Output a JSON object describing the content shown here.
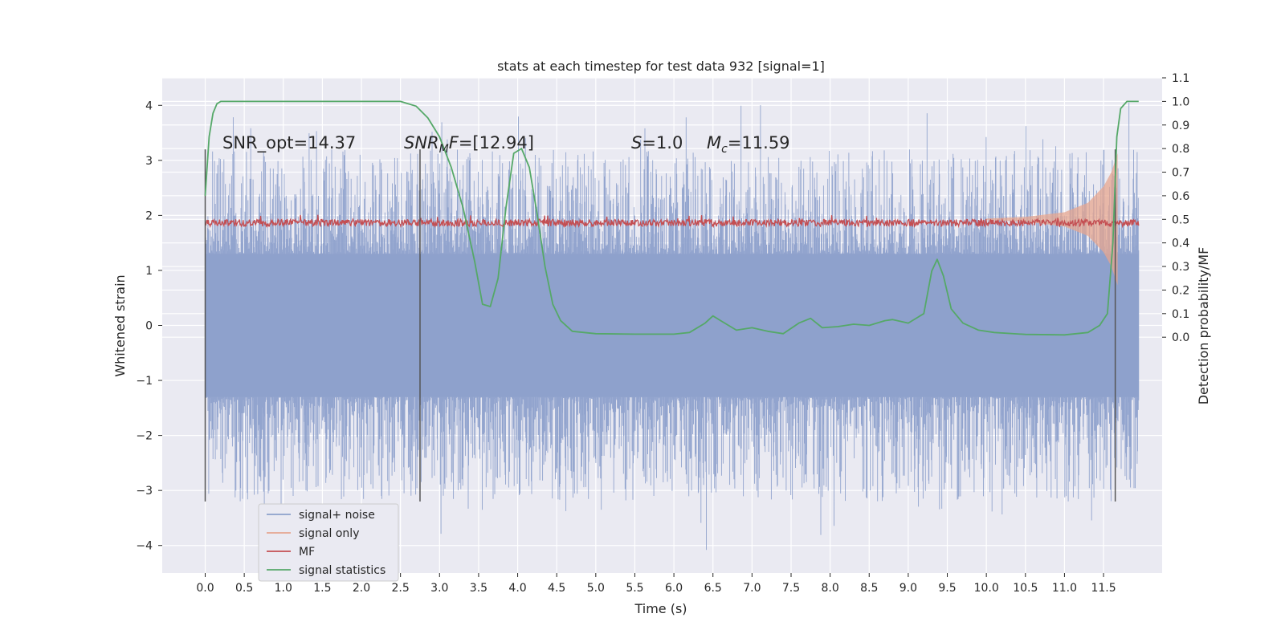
{
  "chart_data": {
    "type": "line",
    "title": "stats at each timestep for test data 932 [signal=1]",
    "xlabel": "Time (s)",
    "ylabel_left": "Whitened strain",
    "ylabel_right": "Detection probability/MF",
    "xlim": [
      -0.55,
      12.25
    ],
    "ylim_left": [
      -4.5,
      4.5
    ],
    "ylim_right": [
      -1.0,
      1.1
    ],
    "x_ticks": [
      "0.0",
      "0.5",
      "1.0",
      "1.5",
      "2.0",
      "2.5",
      "3.0",
      "3.5",
      "4.0",
      "4.5",
      "5.0",
      "5.5",
      "6.0",
      "6.5",
      "7.0",
      "7.5",
      "8.0",
      "8.5",
      "9.0",
      "9.5",
      "10.0",
      "10.5",
      "11.0",
      "11.5"
    ],
    "y_ticks_left": [
      "−4",
      "−3",
      "−2",
      "−1",
      "0",
      "1",
      "2",
      "3",
      "4"
    ],
    "y_ticks_right": [
      "0.0",
      "0.1",
      "0.2",
      "0.3",
      "0.4",
      "0.5",
      "0.6",
      "0.7",
      "0.8",
      "0.9",
      "1.0",
      "1.1"
    ],
    "grid": true,
    "legend_position": "lower-left",
    "annotations": {
      "snr_opt": "SNR_opt=14.37",
      "snr_mf": "=[12.94]",
      "snr_mf_symbol": "SNR",
      "snr_mf_sub": "M",
      "snr_mf_italic": "F",
      "s_symbol": "S",
      "s_val": "=1.0",
      "mc_symbol": "M",
      "mc_sub": "c",
      "mc_val": "=11.59"
    },
    "vlines": [
      0.0,
      2.75,
      11.65
    ],
    "series": [
      {
        "name": "signal+ noise",
        "color": "#8da0cb",
        "axis": "left",
        "envelope_core": 1.3,
        "envelope_peak": 4.1,
        "x_range": [
          0.0,
          11.95
        ]
      },
      {
        "name": "signal only",
        "color": "#e5a58f",
        "axis": "right",
        "x": [
          10.0,
          10.5,
          11.0,
          11.3,
          11.5,
          11.6,
          11.68
        ],
        "amplitude": [
          0.003,
          0.01,
          0.03,
          0.07,
          0.14,
          0.2,
          0.28
        ]
      },
      {
        "name": "MF",
        "color": "#c44e52",
        "axis": "right",
        "baseline": 0.5,
        "jitter": 0.03,
        "x_range": [
          0.0,
          11.95
        ]
      },
      {
        "name": "signal statistics",
        "color": "#55a868",
        "axis": "right",
        "x": [
          0.0,
          0.05,
          0.1,
          0.15,
          0.2,
          0.5,
          1.0,
          2.0,
          2.5,
          2.7,
          2.85,
          3.0,
          3.15,
          3.3,
          3.45,
          3.55,
          3.65,
          3.75,
          3.85,
          3.95,
          4.05,
          4.15,
          4.25,
          4.35,
          4.45,
          4.55,
          4.7,
          5.0,
          5.5,
          6.0,
          6.2,
          6.4,
          6.5,
          6.6,
          6.8,
          7.0,
          7.2,
          7.4,
          7.6,
          7.75,
          7.9,
          8.1,
          8.3,
          8.5,
          8.7,
          8.8,
          9.0,
          9.2,
          9.3,
          9.37,
          9.45,
          9.55,
          9.7,
          9.9,
          10.1,
          10.5,
          11.0,
          11.3,
          11.45,
          11.55,
          11.62,
          11.67,
          11.72,
          11.8,
          11.95
        ],
        "y": [
          0.6,
          0.85,
          0.95,
          0.99,
          1.0,
          1.0,
          1.0,
          1.0,
          1.0,
          0.98,
          0.93,
          0.85,
          0.72,
          0.55,
          0.32,
          0.14,
          0.13,
          0.25,
          0.55,
          0.78,
          0.8,
          0.72,
          0.52,
          0.3,
          0.14,
          0.07,
          0.025,
          0.015,
          0.013,
          0.013,
          0.02,
          0.06,
          0.09,
          0.07,
          0.03,
          0.04,
          0.025,
          0.015,
          0.06,
          0.08,
          0.04,
          0.045,
          0.055,
          0.05,
          0.07,
          0.075,
          0.06,
          0.1,
          0.28,
          0.33,
          0.26,
          0.12,
          0.06,
          0.03,
          0.02,
          0.012,
          0.01,
          0.02,
          0.05,
          0.1,
          0.4,
          0.85,
          0.97,
          1.0,
          1.0
        ]
      }
    ]
  }
}
